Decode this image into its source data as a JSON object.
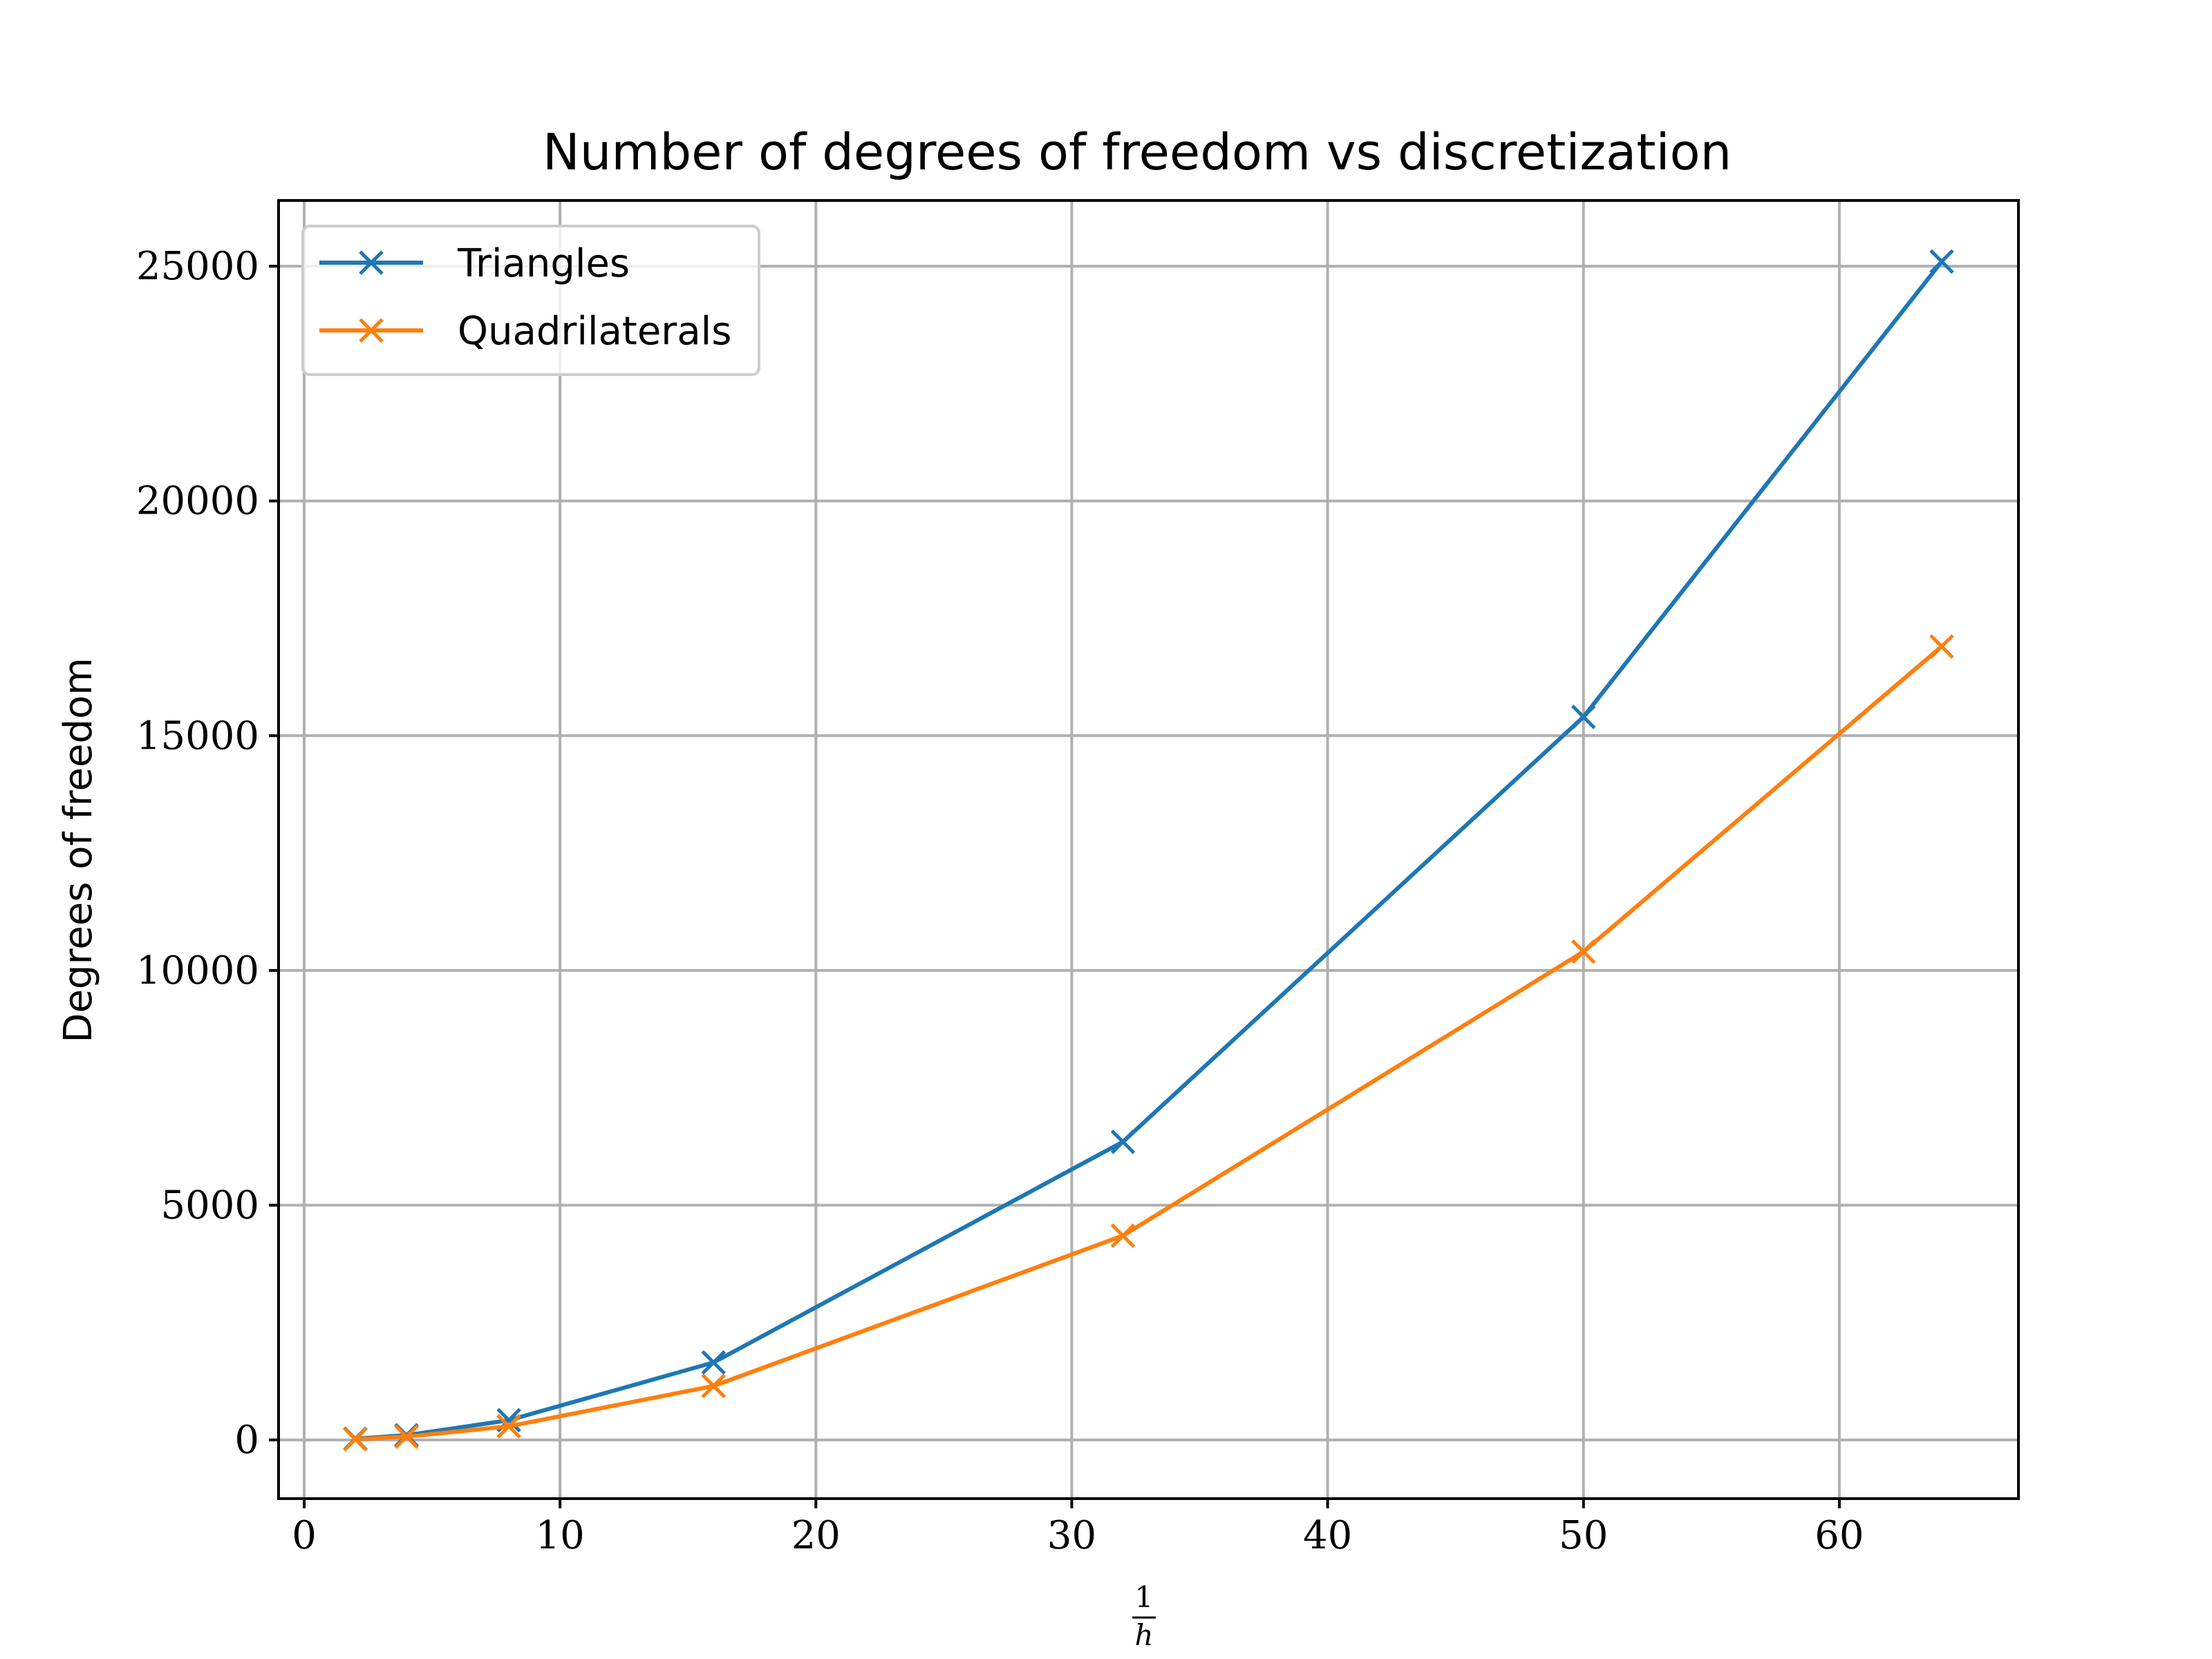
{
  "chart_data": {
    "type": "line",
    "title": "Number of degrees of freedom vs discretization",
    "xlabel_numerator": "1",
    "xlabel_denominator": "h",
    "ylabel": "Degrees of freedom",
    "xlim": [
      -1,
      67
    ],
    "ylim": [
      -1250,
      26400
    ],
    "xticks": [
      0,
      10,
      20,
      30,
      40,
      50,
      60
    ],
    "yticks": [
      0,
      5000,
      10000,
      15000,
      20000,
      25000
    ],
    "grid": true,
    "legend_position": "upper-left",
    "series": [
      {
        "name": "Triangles",
        "color": "#1f77b4",
        "marker": "x",
        "x": [
          2,
          4,
          8,
          16,
          32,
          50,
          64
        ],
        "y": [
          25,
          100,
          420,
          1650,
          6350,
          15400,
          25100
        ]
      },
      {
        "name": "Quadrilaterals",
        "color": "#ff7f0e",
        "marker": "x",
        "x": [
          2,
          4,
          8,
          16,
          32,
          50,
          64
        ],
        "y": [
          15,
          70,
          290,
          1150,
          4350,
          10400,
          16900
        ]
      }
    ]
  }
}
